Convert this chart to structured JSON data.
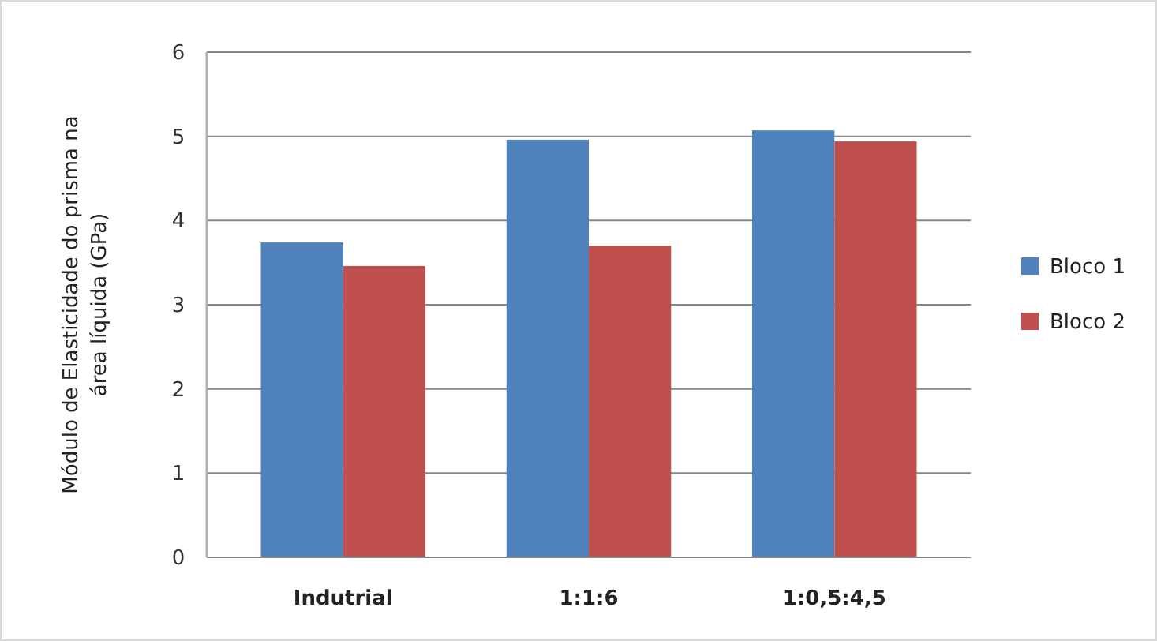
{
  "chart_data": {
    "type": "bar",
    "ylabel": "Módulo de Elasticidade do prisma na área líquida (GPa)",
    "categories": [
      "Indutrial",
      "1:1:6",
      "1:0,5:4,5"
    ],
    "series": [
      {
        "name": "Bloco 1",
        "color": "#4f81bd",
        "values": [
          3.74,
          4.96,
          5.07
        ]
      },
      {
        "name": "Bloco 2",
        "color": "#c0504d",
        "values": [
          3.46,
          3.7,
          4.94
        ]
      }
    ],
    "ylim": [
      0,
      6
    ],
    "yticks": [
      0,
      1,
      2,
      3,
      4,
      5,
      6
    ],
    "grid": "y",
    "legend": "right"
  }
}
